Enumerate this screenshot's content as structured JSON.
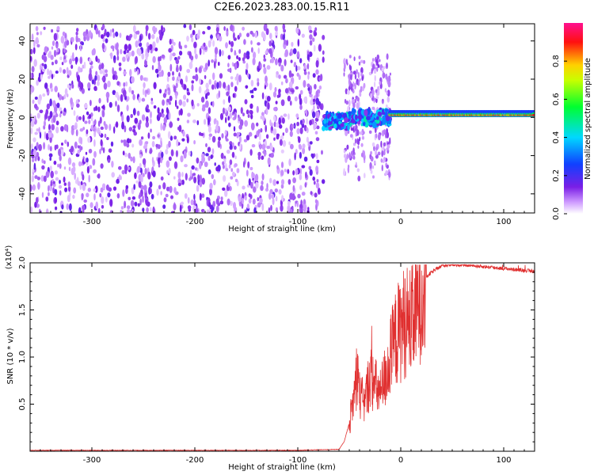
{
  "title": "C2E6.2023.283.00.15.R11",
  "colors": {
    "spectrogram_noise": "#7a1fe6",
    "snr_line": "#e03030",
    "axis": "#000000"
  },
  "chart_data": [
    {
      "type": "heatmap",
      "name": "spectrogram",
      "xlabel": "Height of straight line (km)",
      "ylabel": "Frequency (Hz)",
      "xlim": [
        -360,
        130
      ],
      "ylim": [
        -50,
        49
      ],
      "xticks": [
        -300,
        -200,
        -100,
        0,
        100
      ],
      "yticks": [
        -40,
        -20,
        0,
        20,
        40
      ],
      "xtick_labels": [
        "-300",
        "-200",
        "-100",
        "0",
        "100"
      ],
      "ytick_labels": [
        "-40",
        "-20",
        "0",
        "20",
        "40"
      ],
      "colorbar": {
        "label": "Normalized spectral amplitude",
        "range": [
          0,
          1
        ],
        "ticks": [
          0.0,
          0.2,
          0.4,
          0.6,
          0.8
        ],
        "tick_labels": [
          "0.0",
          "0.2",
          "0.4",
          "0.6",
          "0.8"
        ],
        "colormap": "rainbow (white-purple-blue-cyan-green-yellow-red-magenta)"
      },
      "regions": [
        {
          "x_range": [
            -360,
            -75
          ],
          "y_range": [
            -50,
            48
          ],
          "content": "uniform noise, amplitude ~0.05-0.15"
        },
        {
          "x_range": [
            -75,
            -10
          ],
          "y_range": [
            -5,
            5
          ],
          "content": "fragmented signal near 0 Hz, amplitude 0.1-0.5"
        },
        {
          "x_range": [
            -55,
            -10
          ],
          "y_range": [
            -40,
            35
          ],
          "content": "sparse noise patches"
        },
        {
          "x_range": [
            -10,
            130
          ],
          "y_range": [
            -2,
            4
          ],
          "content": "continuous carrier near 1-2 Hz, amplitude 0.5-1.0"
        }
      ]
    },
    {
      "type": "line",
      "name": "snr",
      "xlabel": "Height of straight line (km)",
      "ylabel": "SNR (10 * v/v)",
      "y_scale_label": "(x10⁴)",
      "xlim": [
        -360,
        130
      ],
      "ylim": [
        0,
        2.0
      ],
      "xticks": [
        -300,
        -200,
        -100,
        0,
        100
      ],
      "yticks": [
        0.5,
        1.0,
        1.5,
        2.0
      ],
      "xtick_labels": [
        "-300",
        "-200",
        "-100",
        "0",
        "100"
      ],
      "ytick_labels": [
        "0.5",
        "1.0",
        "1.5",
        "2.0"
      ],
      "series": [
        {
          "x": [
            -360,
            -300,
            -200,
            -100,
            -60,
            -55,
            -50,
            -45,
            -42,
            -40,
            -35,
            -30,
            -25,
            -20,
            -15,
            -10,
            -5,
            0,
            5,
            10,
            15,
            20,
            25,
            30,
            40,
            50,
            60,
            70,
            80,
            90,
            100,
            110,
            120,
            130
          ],
          "y": [
            0.01,
            0.01,
            0.01,
            0.01,
            0.02,
            0.1,
            0.3,
            0.6,
            0.9,
            0.6,
            0.5,
            0.8,
            0.7,
            0.6,
            0.8,
            1.0,
            1.2,
            1.3,
            1.4,
            1.35,
            1.5,
            1.7,
            1.85,
            1.9,
            1.97,
            1.98,
            1.98,
            1.97,
            1.96,
            1.95,
            1.94,
            1.93,
            1.92,
            1.91
          ]
        }
      ]
    }
  ]
}
